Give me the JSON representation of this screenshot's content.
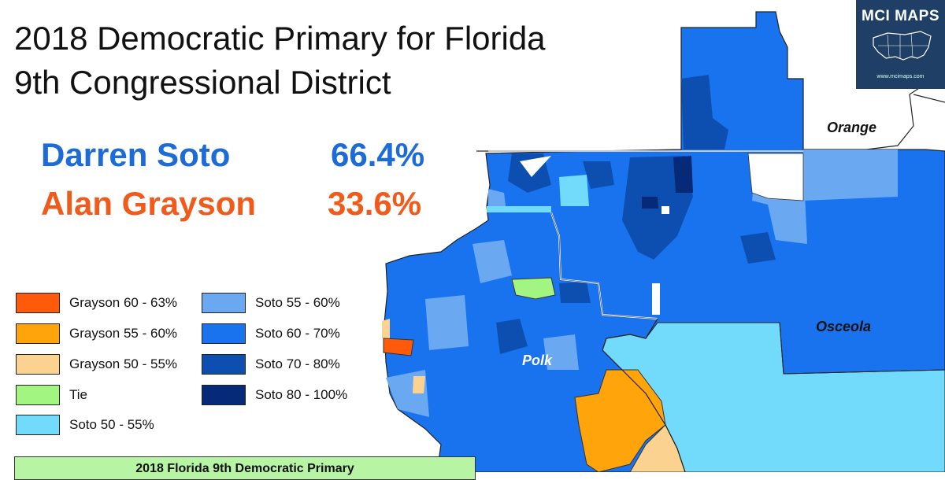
{
  "title": {
    "line1": "2018 Democratic Primary for Florida",
    "line2": "9th Congressional District"
  },
  "results": [
    {
      "candidate": "Darren Soto",
      "percent": "66.4%",
      "color": "#1c6bd8"
    },
    {
      "candidate": "Alan Grayson",
      "percent": "33.6%",
      "color": "#f05a1a"
    }
  ],
  "legend": [
    {
      "label": "Grayson 60 - 63%",
      "color": "#ff5a0a"
    },
    {
      "label": "Soto 55 - 60%",
      "color": "#6aa9f2"
    },
    {
      "label": "Grayson 55 - 60%",
      "color": "#ffa40a"
    },
    {
      "label": "Soto 60 - 70%",
      "color": "#1a73ee"
    },
    {
      "label": "Grayson 50 - 55%",
      "color": "#fcd291"
    },
    {
      "label": "Soto 70 - 80%",
      "color": "#0d4fb0"
    },
    {
      "label": "Tie",
      "color": "#a3f582"
    },
    {
      "label": "Soto 80 - 100%",
      "color": "#072a78"
    },
    {
      "label": "Soto 50 - 55%",
      "color": "#72dbfc"
    }
  ],
  "counties": {
    "orange": "Orange",
    "osceola": "Osceola",
    "polk": "Polk"
  },
  "logo": {
    "name": "MCI MAPS",
    "url": "www.mcimaps.com"
  },
  "table_banner": "2018 Florida 9th Democratic Primary"
}
